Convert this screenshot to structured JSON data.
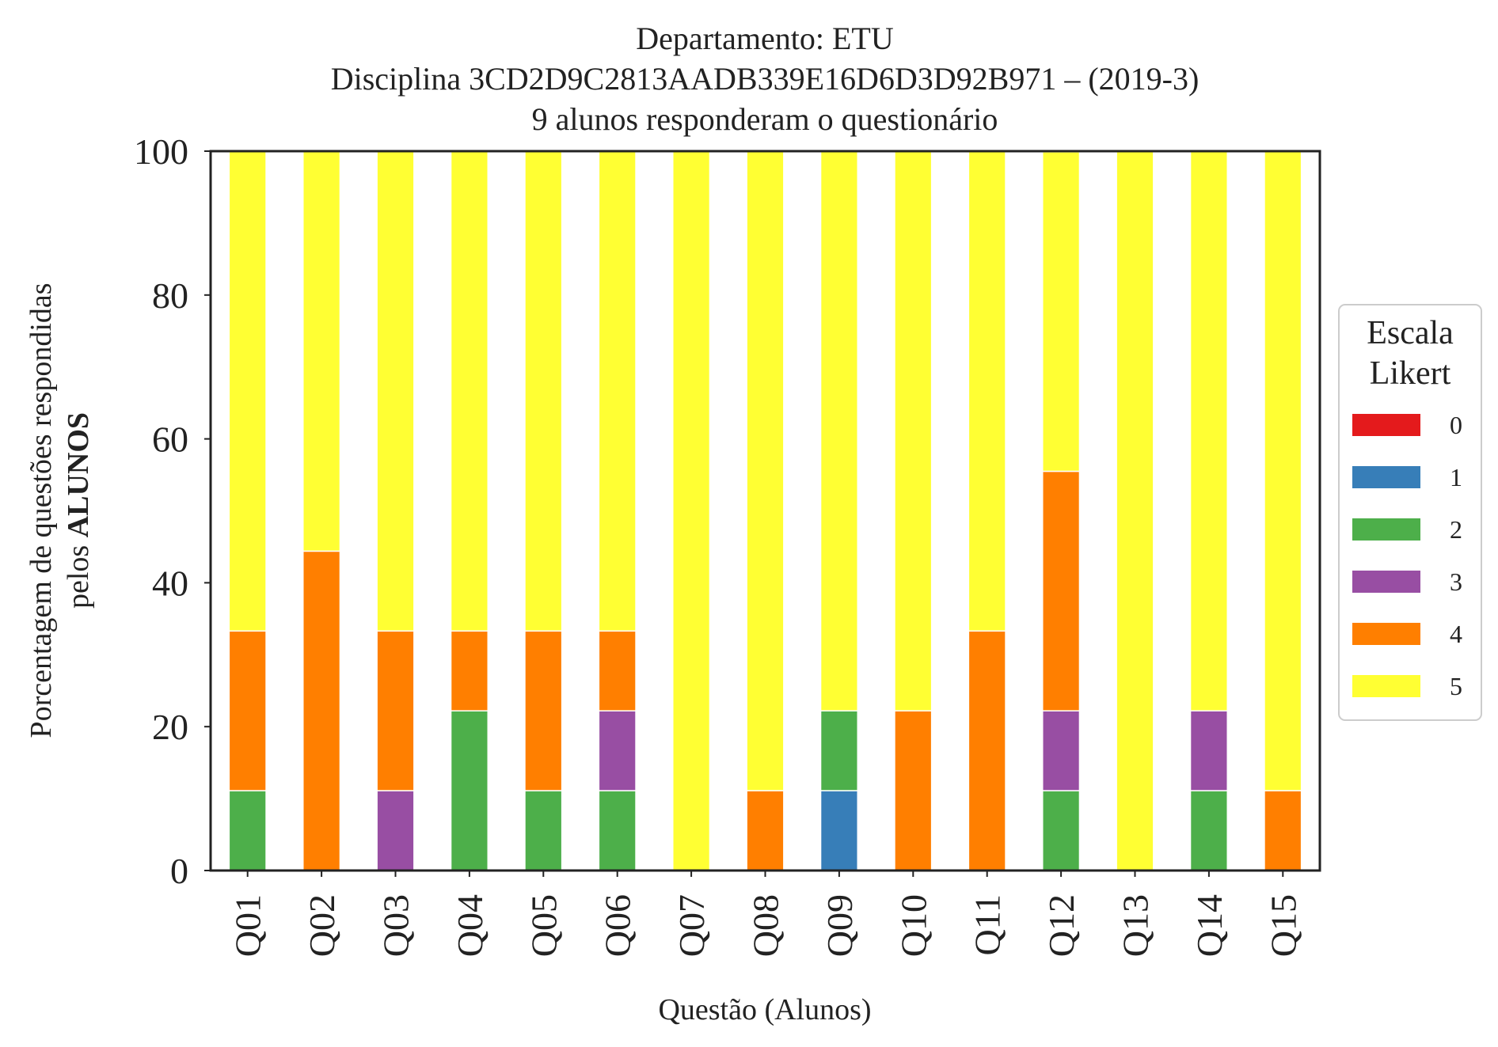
{
  "chart_data": {
    "type": "bar",
    "stacked": true,
    "title": [
      "Departamento: ETU",
      "Disciplina 3CD2D9C2813AADB339E16D6D3D92B971 – (2019-3)",
      "9 alunos responderam o questionário"
    ],
    "xlabel": "Questão (Alunos)",
    "ylabel_line1": "Porcentagem de questões respondidas",
    "ylabel_line2_prefix": "pelos ",
    "ylabel_line2_bold": "ALUNOS",
    "ylim": [
      0,
      100
    ],
    "yticks": [
      "0",
      "20",
      "40",
      "60",
      "80",
      "100"
    ],
    "grid": false,
    "legend_position": "right",
    "legend_title": [
      "Escala",
      "Likert"
    ],
    "categories": [
      "Q01",
      "Q02",
      "Q03",
      "Q04",
      "Q05",
      "Q06",
      "Q07",
      "Q08",
      "Q09",
      "Q10",
      "Q11",
      "Q12",
      "Q13",
      "Q14",
      "Q15"
    ],
    "series": [
      {
        "name": "0",
        "color": "#e41a1c",
        "values": [
          0,
          0,
          0,
          0,
          0,
          0,
          0,
          0,
          0,
          0,
          0,
          0,
          0,
          0,
          0
        ]
      },
      {
        "name": "1",
        "color": "#377eb8",
        "values": [
          0,
          0,
          0,
          0,
          0,
          0,
          0,
          0,
          11.1,
          0,
          0,
          0,
          0,
          0,
          0
        ]
      },
      {
        "name": "2",
        "color": "#4daf4a",
        "values": [
          11.1,
          0,
          0,
          22.2,
          11.1,
          11.1,
          0,
          0,
          11.1,
          0,
          0,
          11.1,
          0,
          11.1,
          0
        ]
      },
      {
        "name": "3",
        "color": "#984ea3",
        "values": [
          0,
          0,
          11.1,
          0,
          0,
          11.1,
          0,
          0,
          0,
          0,
          0,
          11.1,
          0,
          11.1,
          0
        ]
      },
      {
        "name": "4",
        "color": "#ff7f00",
        "values": [
          22.2,
          44.4,
          22.2,
          11.1,
          22.2,
          11.1,
          0,
          11.1,
          0,
          22.2,
          33.3,
          33.3,
          0,
          0,
          11.1
        ]
      },
      {
        "name": "5",
        "color": "#ffff33",
        "values": [
          66.7,
          55.6,
          66.7,
          66.7,
          66.7,
          66.7,
          100,
          88.9,
          77.8,
          77.8,
          66.7,
          44.4,
          100,
          77.8,
          88.9
        ]
      }
    ]
  }
}
